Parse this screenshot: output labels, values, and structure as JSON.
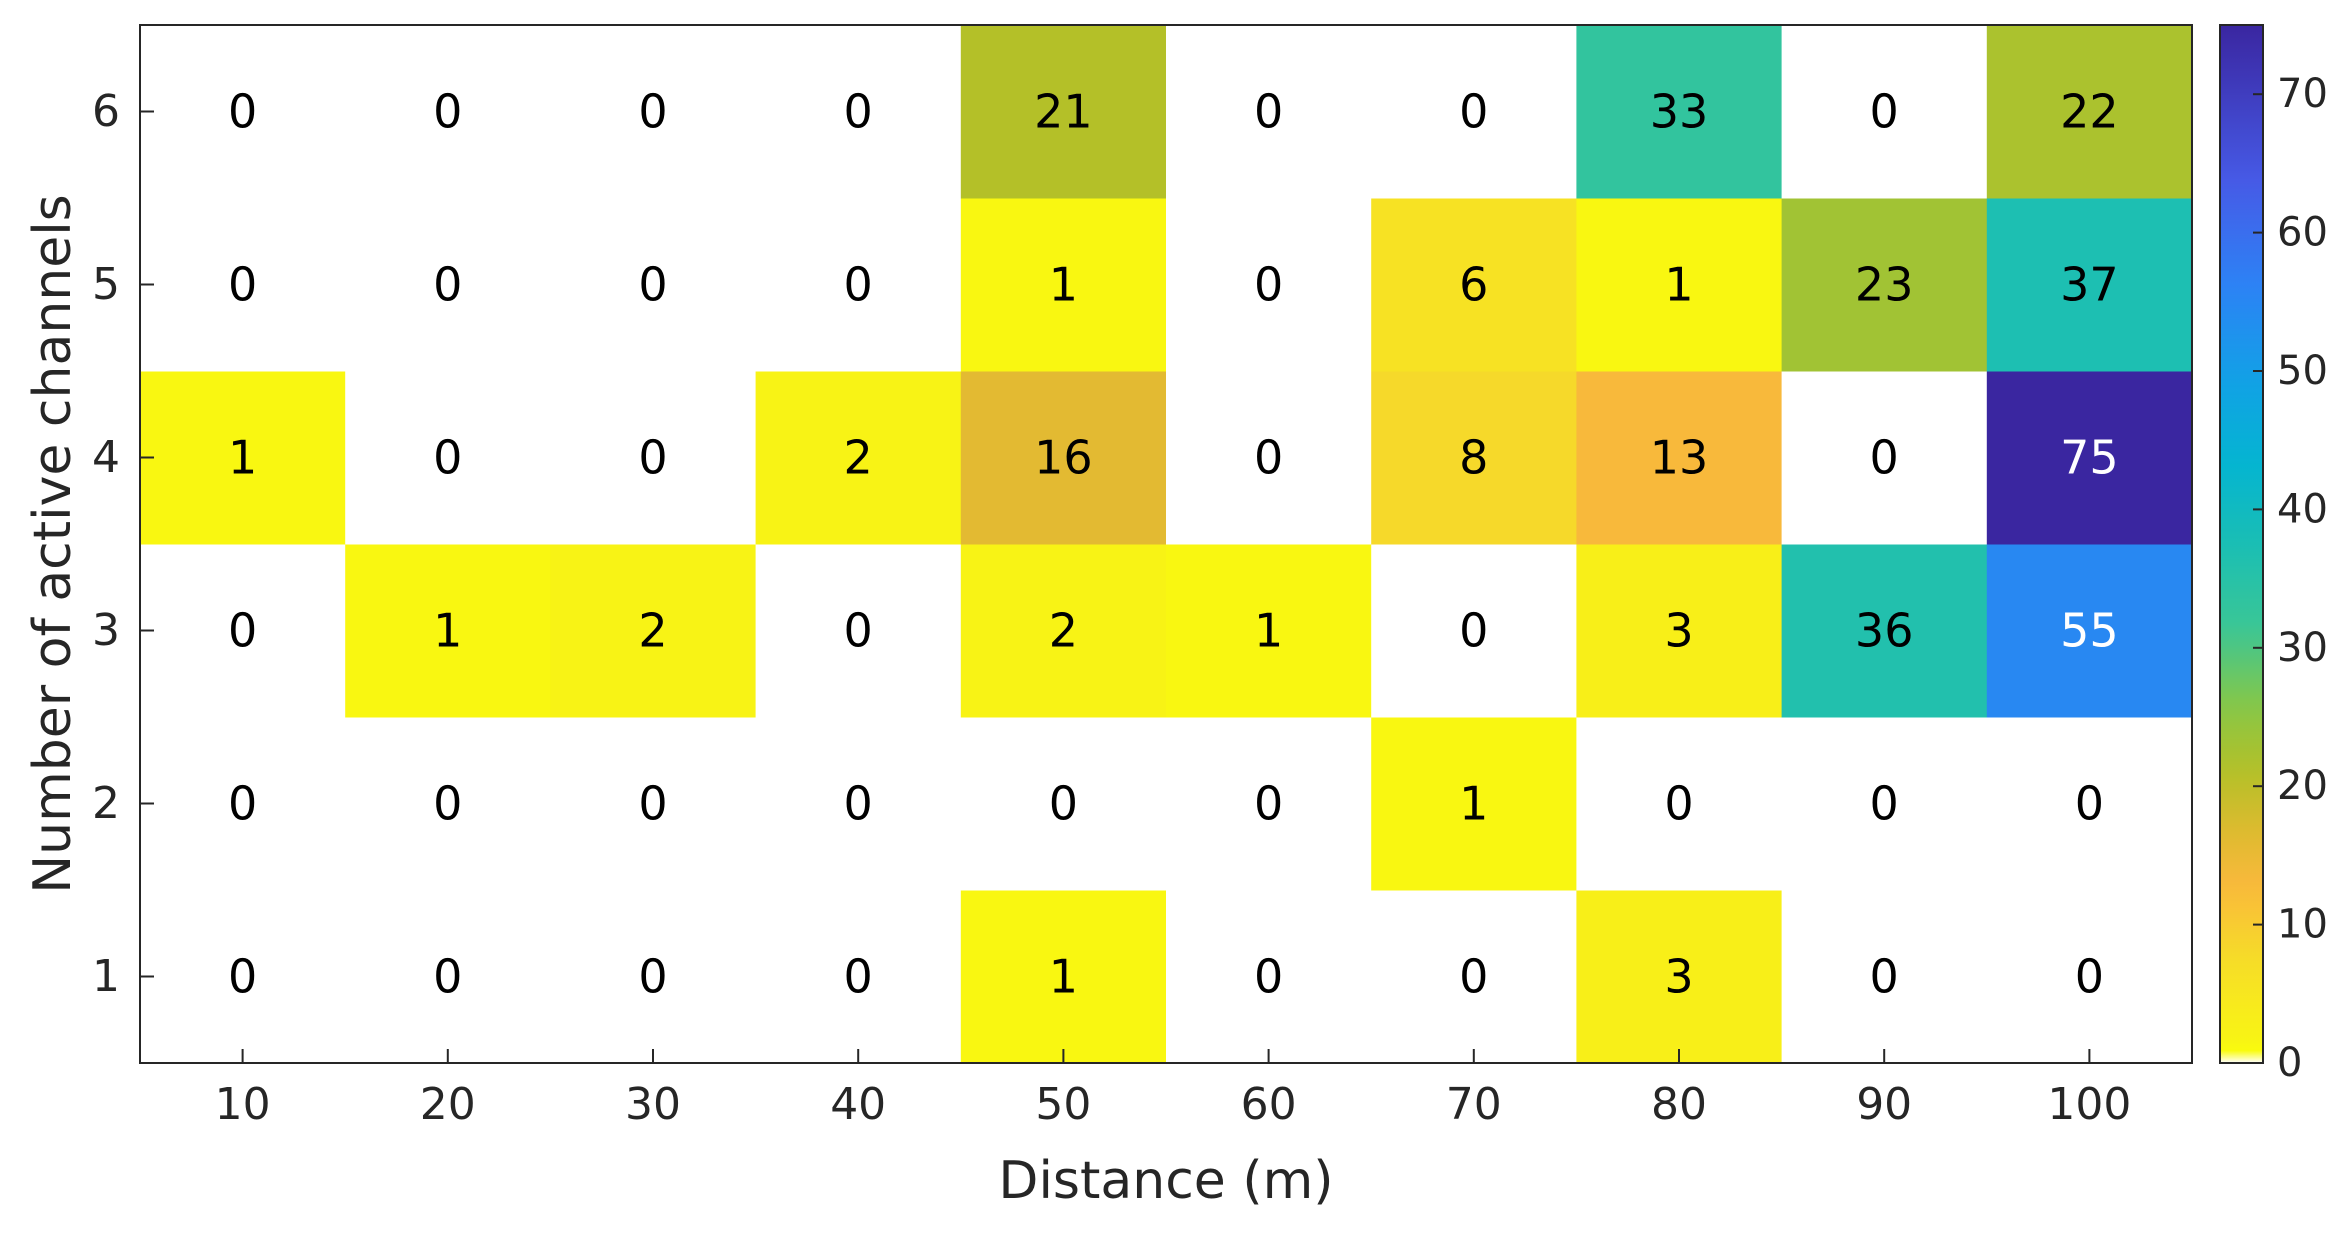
{
  "chart_data": {
    "type": "heatmap",
    "xlabel": "Distance (m)",
    "ylabel": "Number of active channels",
    "x": [
      "10",
      "20",
      "30",
      "40",
      "50",
      "60",
      "70",
      "80",
      "90",
      "100"
    ],
    "y": [
      "1",
      "2",
      "3",
      "4",
      "5",
      "6"
    ],
    "values": [
      [
        0,
        0,
        0,
        0,
        1,
        0,
        0,
        3,
        0,
        0
      ],
      [
        0,
        0,
        0,
        0,
        0,
        0,
        1,
        0,
        0,
        0
      ],
      [
        0,
        1,
        2,
        0,
        2,
        1,
        0,
        3,
        36,
        55
      ],
      [
        1,
        0,
        0,
        2,
        16,
        0,
        8,
        13,
        0,
        75
      ],
      [
        0,
        0,
        0,
        0,
        1,
        0,
        6,
        1,
        23,
        37
      ],
      [
        0,
        0,
        0,
        0,
        21,
        0,
        0,
        33,
        0,
        22
      ]
    ],
    "colorbar": {
      "range": [
        0,
        75
      ],
      "ticks": [
        0,
        10,
        20,
        30,
        40,
        50,
        60,
        70
      ],
      "colormap": "parula (reversed)",
      "zero_color": "#ffffff"
    },
    "grid": false
  }
}
